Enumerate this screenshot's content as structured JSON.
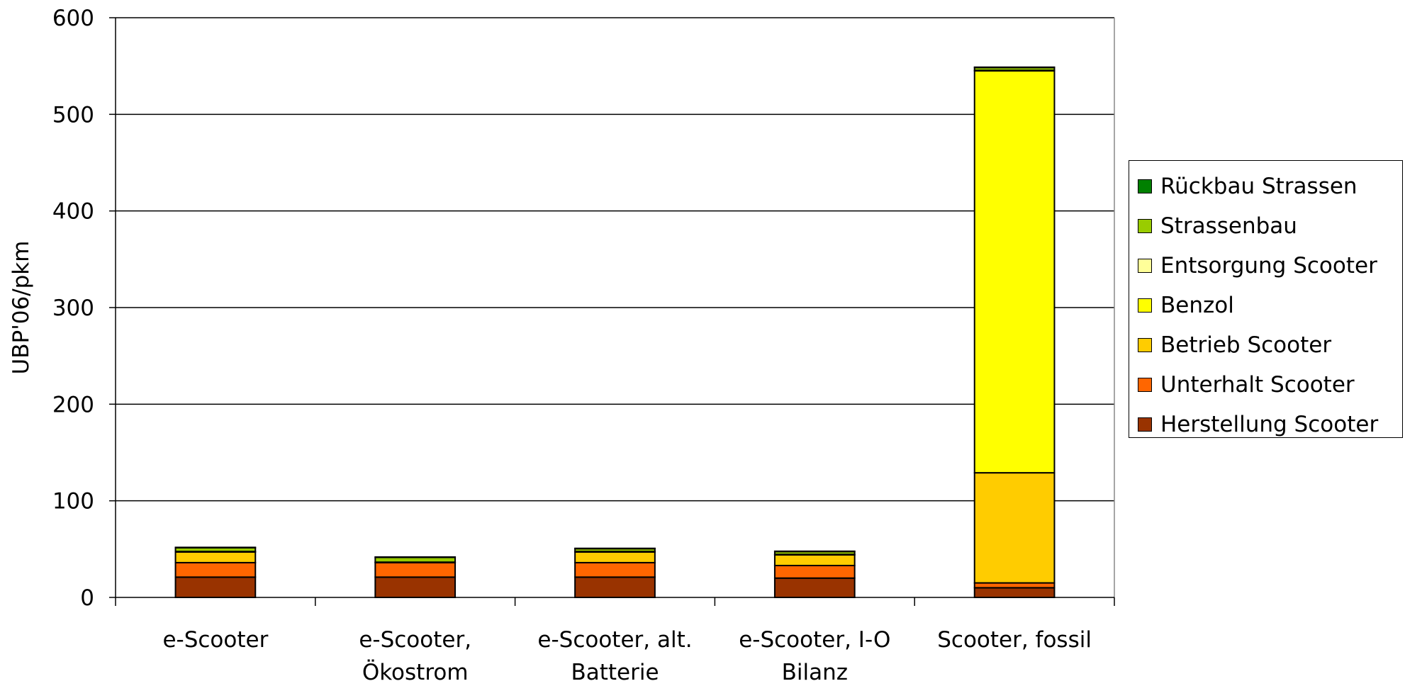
{
  "chart_data": {
    "type": "bar",
    "stacked": true,
    "ylabel": "UBP'06/pkm",
    "ylim": [
      0,
      600
    ],
    "yticks": [
      0,
      100,
      200,
      300,
      400,
      500,
      600
    ],
    "grid": true,
    "legend_position": "right",
    "categories": [
      [
        "e-Scooter"
      ],
      [
        "e-Scooter,",
        "Ökostrom"
      ],
      [
        "e-Scooter, alt.",
        "Batterie"
      ],
      [
        "e-Scooter, I-O",
        "Bilanz"
      ],
      [
        "Scooter, fossil"
      ]
    ],
    "series": [
      {
        "name": "Herstellung Scooter",
        "color": "#993300",
        "values": [
          21,
          21,
          21,
          20,
          10
        ]
      },
      {
        "name": "Unterhalt Scooter",
        "color": "#FF6600",
        "values": [
          15,
          15,
          15,
          13,
          5
        ]
      },
      {
        "name": "Betrieb Scooter",
        "color": "#FFCC00",
        "values": [
          11,
          0,
          11,
          11,
          114
        ]
      },
      {
        "name": "Benzol",
        "color": "#FFFF00",
        "values": [
          0,
          0,
          0,
          0,
          416
        ]
      },
      {
        "name": "Entsorgung Scooter",
        "color": "#FFFF99",
        "values": [
          0.5,
          0.5,
          0.5,
          0.5,
          0.5
        ]
      },
      {
        "name": "Strassenbau",
        "color": "#99CC00",
        "values": [
          4,
          5,
          3,
          3,
          3
        ]
      },
      {
        "name": "Rückbau Strassen",
        "color": "#008000",
        "values": [
          0.3,
          0.3,
          0.3,
          0.3,
          0.3
        ]
      }
    ]
  }
}
